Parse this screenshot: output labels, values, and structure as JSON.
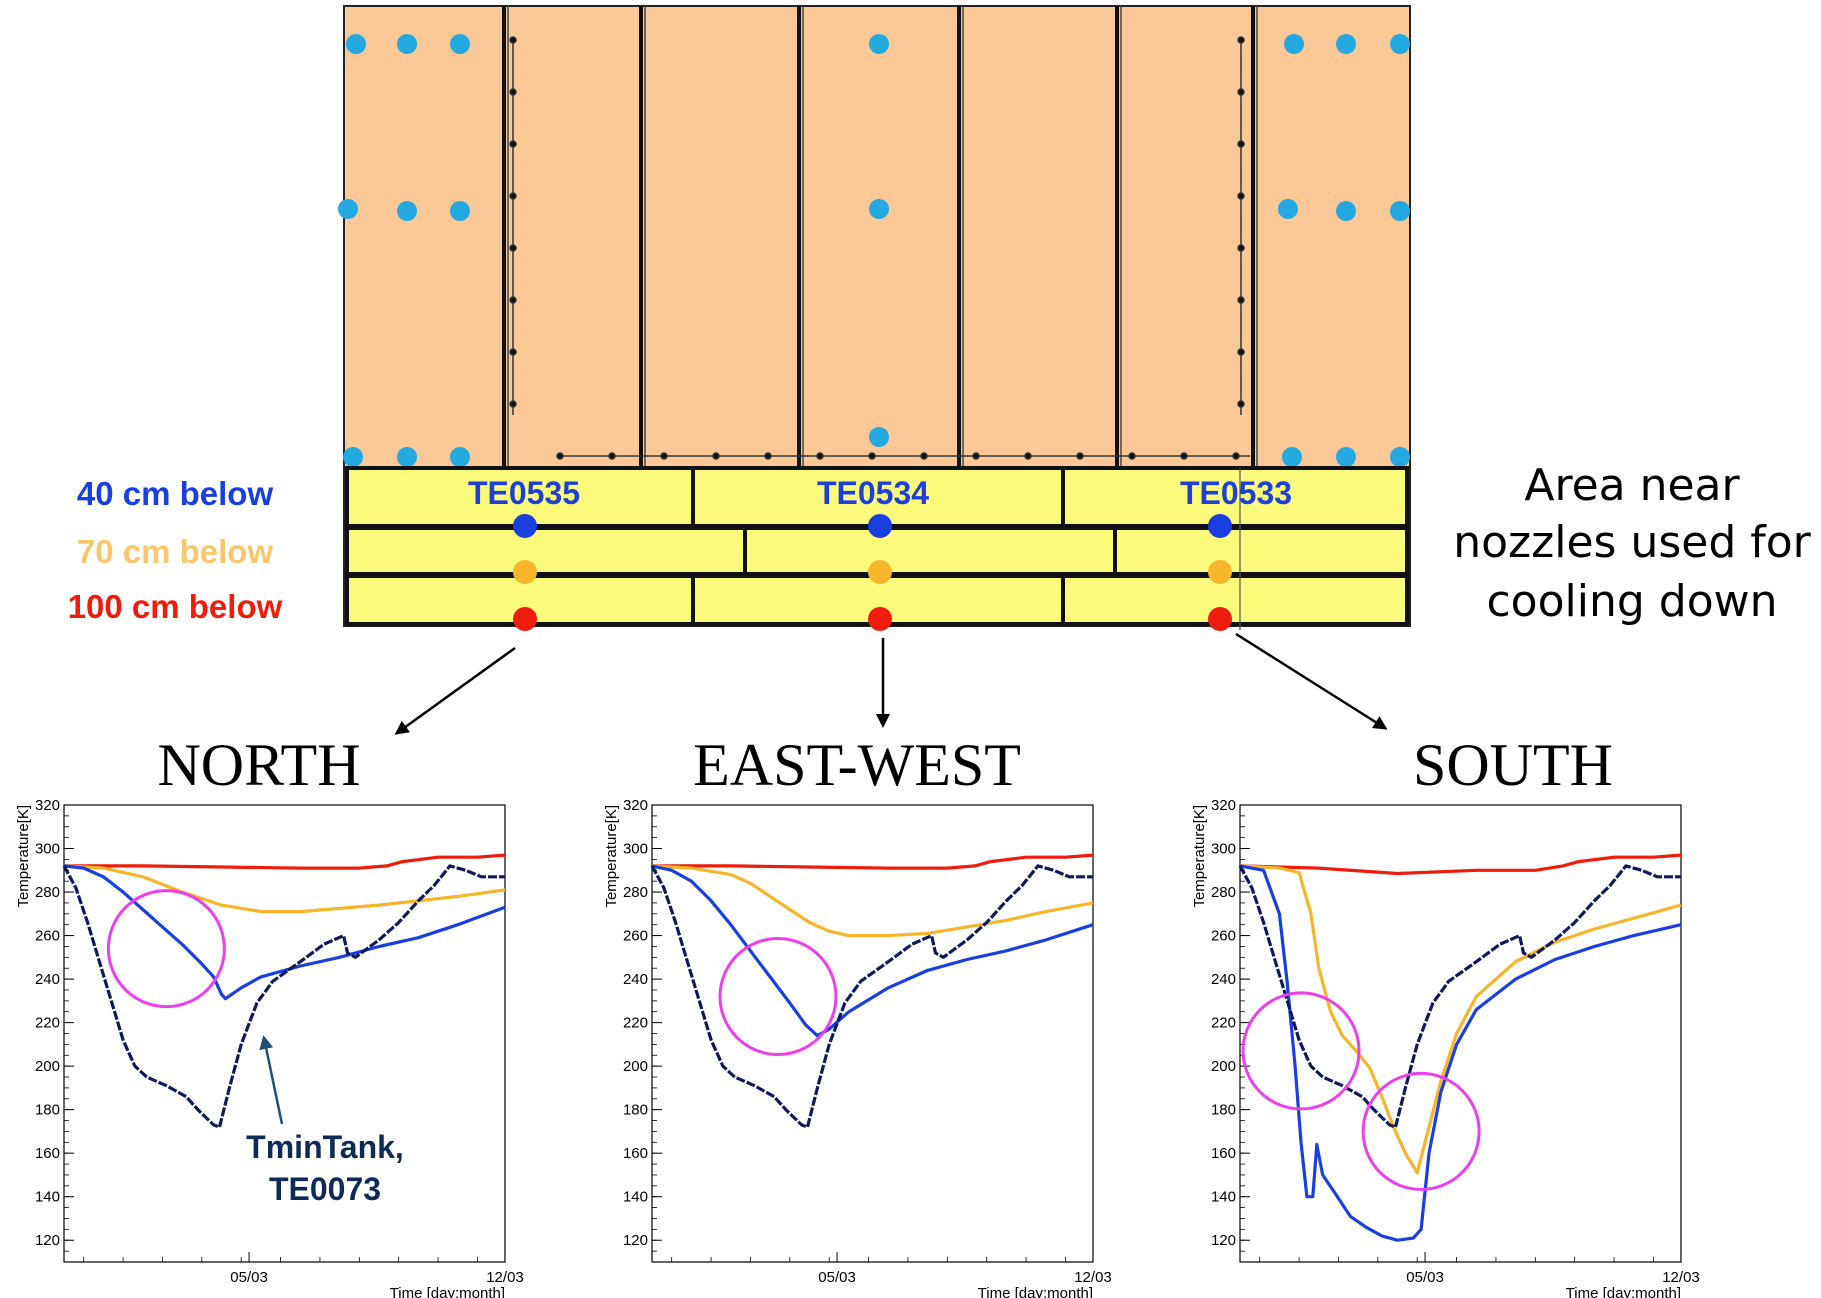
{
  "diagram": {
    "legend": [
      {
        "label": "40 cm below",
        "color": "#1a3fe0"
      },
      {
        "label": "70 cm below",
        "color": "#f6b52a"
      },
      {
        "label": "100 cm below",
        "color": "#ee1c0c"
      }
    ],
    "sensors": [
      "TE0535",
      "TE0534",
      "TE0533"
    ],
    "side_note": [
      "Area near",
      "nozzles used for",
      "cooling down"
    ],
    "colors": {
      "panel": "#fbc998",
      "band": "#fafa7b",
      "nozzle": "#24a8e0",
      "circle": "#ec3fec"
    }
  },
  "annotation": {
    "line1": "TminTank,",
    "line2": "TE0073"
  },
  "chart_data": [
    {
      "type": "line",
      "title": "NORTH",
      "ylabel": "Temperature[K]",
      "xlabel": "Time [day:month]",
      "xticks": [
        "05/03",
        "12/03"
      ],
      "ylim": [
        110,
        320
      ],
      "yticks": [
        120,
        140,
        160,
        180,
        200,
        220,
        240,
        260,
        280,
        300,
        320
      ],
      "x_range_days": [
        0,
        11.2
      ],
      "series": [
        {
          "color": "#ee1c0c",
          "points": [
            [
              0,
              292
            ],
            [
              2,
              292
            ],
            [
              4,
              291.5
            ],
            [
              6,
              291
            ],
            [
              7.5,
              291
            ],
            [
              8.2,
              292
            ],
            [
              8.6,
              294
            ],
            [
              9.5,
              296
            ],
            [
              10.5,
              296
            ],
            [
              11.2,
              297
            ]
          ]
        },
        {
          "color": "#f6b52a",
          "points": [
            [
              0,
              292
            ],
            [
              1,
              291
            ],
            [
              2,
              287
            ],
            [
              3,
              280
            ],
            [
              4,
              274
            ],
            [
              5,
              271
            ],
            [
              6,
              271
            ],
            [
              7,
              272.5
            ],
            [
              8,
              274
            ],
            [
              9,
              276
            ],
            [
              10,
              278
            ],
            [
              11.2,
              281
            ]
          ]
        },
        {
          "color": "#1a3fe0",
          "points": [
            [
              0,
              292
            ],
            [
              0.5,
              291
            ],
            [
              1,
              287
            ],
            [
              1.5,
              280
            ],
            [
              2,
              272
            ],
            [
              2.5,
              264
            ],
            [
              3,
              256
            ],
            [
              3.5,
              247
            ],
            [
              3.8,
              241
            ],
            [
              4.0,
              233
            ],
            [
              4.1,
              231
            ],
            [
              4.5,
              236
            ],
            [
              5,
              241
            ],
            [
              6,
              246
            ],
            [
              7,
              250
            ],
            [
              8,
              255
            ],
            [
              9,
              259
            ],
            [
              10,
              265
            ],
            [
              11.2,
              273
            ]
          ]
        },
        {
          "color": "#0e1a5a",
          "points": [
            [
              0,
              292
            ],
            [
              0.3,
              282
            ],
            [
              0.6,
              266
            ],
            [
              0.9,
              248
            ],
            [
              1.2,
              230
            ],
            [
              1.5,
              212
            ],
            [
              1.8,
              200
            ],
            [
              2.1,
              195
            ],
            [
              2.6,
              191
            ],
            [
              3.1,
              186
            ],
            [
              3.4,
              180
            ],
            [
              3.8,
              173
            ],
            [
              3.95,
              172
            ],
            [
              4.2,
              190
            ],
            [
              4.5,
              210
            ],
            [
              4.9,
              229
            ],
            [
              5.3,
              239
            ],
            [
              6,
              248
            ],
            [
              6.6,
              256
            ],
            [
              7.1,
              260
            ],
            [
              7.2,
              252
            ],
            [
              7.4,
              250
            ],
            [
              8,
              258
            ],
            [
              8.5,
              266
            ],
            [
              9,
              276
            ],
            [
              9.4,
              283
            ],
            [
              9.8,
              292
            ],
            [
              10.2,
              290
            ],
            [
              10.6,
              287
            ],
            [
              11.2,
              287
            ]
          ]
        }
      ],
      "circles": [
        {
          "x": 2.6,
          "y": 254
        }
      ]
    },
    {
      "type": "line",
      "title": "EAST-WEST",
      "ylabel": "Temperature[K]",
      "xlabel": "Time [day:month]",
      "xticks": [
        "05/03",
        "12/03"
      ],
      "ylim": [
        110,
        320
      ],
      "yticks": [
        120,
        140,
        160,
        180,
        200,
        220,
        240,
        260,
        280,
        300,
        320
      ],
      "x_range_days": [
        0,
        11.2
      ],
      "series": [
        {
          "color": "#ee1c0c",
          "points": [
            [
              0,
              292
            ],
            [
              2,
              292
            ],
            [
              4,
              291.5
            ],
            [
              6,
              291
            ],
            [
              7.5,
              291
            ],
            [
              8.2,
              292
            ],
            [
              8.6,
              294
            ],
            [
              9.5,
              296
            ],
            [
              10.5,
              296
            ],
            [
              11.2,
              297
            ]
          ]
        },
        {
          "color": "#f6b52a",
          "points": [
            [
              0,
              292
            ],
            [
              1,
              291
            ],
            [
              2,
              288
            ],
            [
              2.5,
              284
            ],
            [
              3,
              278
            ],
            [
              3.5,
              272
            ],
            [
              4,
              266
            ],
            [
              4.5,
              262
            ],
            [
              5,
              260
            ],
            [
              6,
              260
            ],
            [
              7,
              261
            ],
            [
              8,
              264
            ],
            [
              9,
              267
            ],
            [
              10,
              271
            ],
            [
              11.2,
              275
            ]
          ]
        },
        {
          "color": "#1a3fe0",
          "points": [
            [
              0,
              292
            ],
            [
              0.5,
              290
            ],
            [
              1,
              285
            ],
            [
              1.5,
              276
            ],
            [
              2,
              265
            ],
            [
              2.5,
              253
            ],
            [
              3,
              241
            ],
            [
              3.5,
              229
            ],
            [
              3.9,
              219
            ],
            [
              4.2,
              214
            ],
            [
              4.5,
              217
            ],
            [
              5,
              225
            ],
            [
              6,
              236
            ],
            [
              7,
              244
            ],
            [
              8,
              249
            ],
            [
              9,
              253
            ],
            [
              10,
              258
            ],
            [
              11.2,
              265
            ]
          ]
        },
        {
          "color": "#0e1a5a",
          "points": [
            [
              0,
              292
            ],
            [
              0.3,
              282
            ],
            [
              0.6,
              266
            ],
            [
              0.9,
              248
            ],
            [
              1.2,
              230
            ],
            [
              1.5,
              212
            ],
            [
              1.8,
              200
            ],
            [
              2.1,
              195
            ],
            [
              2.6,
              191
            ],
            [
              3.1,
              186
            ],
            [
              3.4,
              180
            ],
            [
              3.8,
              173
            ],
            [
              3.95,
              172
            ],
            [
              4.2,
              190
            ],
            [
              4.5,
              210
            ],
            [
              4.9,
              229
            ],
            [
              5.3,
              239
            ],
            [
              6,
              248
            ],
            [
              6.6,
              256
            ],
            [
              7.1,
              260
            ],
            [
              7.2,
              252
            ],
            [
              7.4,
              250
            ],
            [
              8,
              258
            ],
            [
              8.5,
              266
            ],
            [
              9,
              276
            ],
            [
              9.4,
              283
            ],
            [
              9.8,
              292
            ],
            [
              10.2,
              290
            ],
            [
              10.6,
              287
            ],
            [
              11.2,
              287
            ]
          ]
        }
      ],
      "circles": [
        {
          "x": 3.2,
          "y": 232
        }
      ]
    },
    {
      "type": "line",
      "title": "SOUTH",
      "ylabel": "Temperature[K]",
      "xlabel": "Time [day:month]",
      "xticks": [
        "05/03",
        "12/03"
      ],
      "ylim": [
        110,
        320
      ],
      "yticks": [
        120,
        140,
        160,
        180,
        200,
        220,
        240,
        260,
        280,
        300,
        320
      ],
      "x_range_days": [
        0,
        11.2
      ],
      "series": [
        {
          "color": "#ee1c0c",
          "points": [
            [
              0,
              292
            ],
            [
              2,
              291
            ],
            [
              4,
              288.5
            ],
            [
              6,
              290
            ],
            [
              7.5,
              290
            ],
            [
              8.2,
              292
            ],
            [
              8.6,
              294
            ],
            [
              9.5,
              296
            ],
            [
              10.5,
              296
            ],
            [
              11.2,
              297
            ]
          ]
        },
        {
          "color": "#f6b52a",
          "points": [
            [
              0,
              292
            ],
            [
              1,
              291
            ],
            [
              1.5,
              289
            ],
            [
              1.8,
              270
            ],
            [
              2.0,
              245
            ],
            [
              2.3,
              225
            ],
            [
              2.6,
              214
            ],
            [
              3.0,
              206
            ],
            [
              3.3,
              199
            ],
            [
              3.6,
              186
            ],
            [
              3.9,
              172
            ],
            [
              4.2,
              160
            ],
            [
              4.5,
              151
            ],
            [
              4.8,
              172
            ],
            [
              5.1,
              193
            ],
            [
              5.5,
              215
            ],
            [
              6,
              232
            ],
            [
              7,
              248
            ],
            [
              8,
              257
            ],
            [
              9,
              263
            ],
            [
              10,
              268
            ],
            [
              11.2,
              274
            ]
          ]
        },
        {
          "color": "#1a3fe0",
          "points": [
            [
              0,
              292
            ],
            [
              0.6,
              290
            ],
            [
              1.0,
              270
            ],
            [
              1.2,
              238
            ],
            [
              1.4,
              200
            ],
            [
              1.55,
              165
            ],
            [
              1.7,
              140
            ],
            [
              1.85,
              140
            ],
            [
              1.95,
              164
            ],
            [
              2.1,
              150
            ],
            [
              2.4,
              142
            ],
            [
              2.8,
              131
            ],
            [
              3.2,
              126
            ],
            [
              3.6,
              122
            ],
            [
              4.0,
              120
            ],
            [
              4.4,
              121
            ],
            [
              4.6,
              125
            ],
            [
              4.8,
              160
            ],
            [
              5.1,
              188
            ],
            [
              5.5,
              210
            ],
            [
              6,
              226
            ],
            [
              7,
              240
            ],
            [
              8,
              249
            ],
            [
              9,
              255
            ],
            [
              10,
              260
            ],
            [
              11.2,
              265
            ]
          ]
        },
        {
          "color": "#0e1a5a",
          "points": [
            [
              0,
              292
            ],
            [
              0.3,
              282
            ],
            [
              0.6,
              266
            ],
            [
              0.9,
              248
            ],
            [
              1.2,
              230
            ],
            [
              1.5,
              212
            ],
            [
              1.8,
              200
            ],
            [
              2.1,
              195
            ],
            [
              2.6,
              191
            ],
            [
              3.1,
              186
            ],
            [
              3.4,
              180
            ],
            [
              3.8,
              173
            ],
            [
              3.95,
              172
            ],
            [
              4.2,
              190
            ],
            [
              4.5,
              210
            ],
            [
              4.9,
              229
            ],
            [
              5.3,
              239
            ],
            [
              6,
              248
            ],
            [
              6.6,
              256
            ],
            [
              7.1,
              260
            ],
            [
              7.2,
              252
            ],
            [
              7.4,
              250
            ],
            [
              8,
              258
            ],
            [
              8.5,
              266
            ],
            [
              9,
              276
            ],
            [
              9.4,
              283
            ],
            [
              9.8,
              292
            ],
            [
              10.2,
              290
            ],
            [
              10.6,
              287
            ],
            [
              11.2,
              287
            ]
          ]
        }
      ],
      "circles": [
        {
          "x": 1.55,
          "y": 207
        },
        {
          "x": 4.6,
          "y": 170
        }
      ]
    }
  ]
}
